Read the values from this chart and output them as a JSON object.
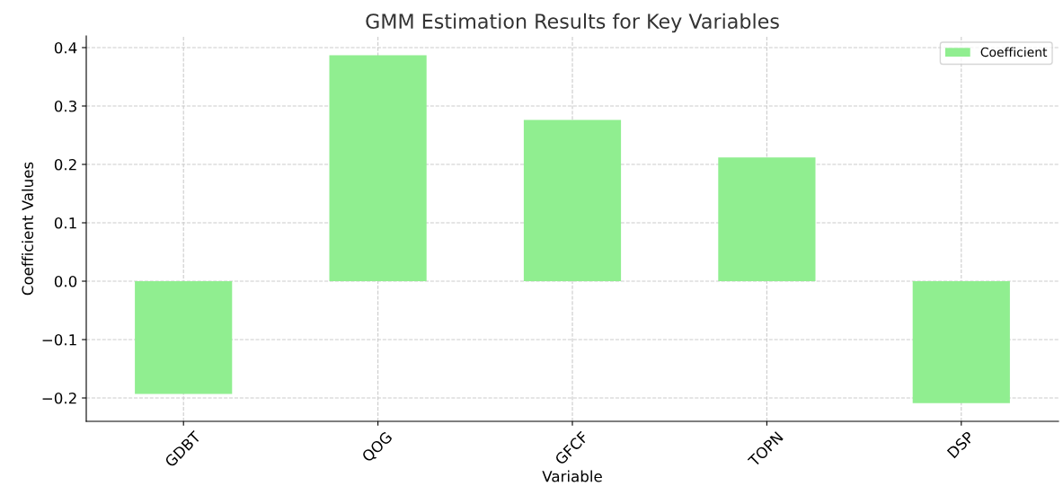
{
  "chart_data": {
    "type": "bar",
    "title": "GMM Estimation Results for Key Variables",
    "xlabel": "Variable",
    "ylabel": "Coefficient Values",
    "categories": [
      "GDBT",
      "QOG",
      "GFCF",
      "TOPN",
      "DSP"
    ],
    "series": [
      {
        "name": "Coefficient",
        "color": "#90ee90",
        "values": [
          -0.193,
          0.387,
          0.276,
          0.212,
          -0.209
        ]
      }
    ],
    "ylim": [
      -0.24,
      0.42
    ],
    "yticks": [
      {
        "value": -0.2,
        "label": "−0.2"
      },
      {
        "value": -0.1,
        "label": "−0.1"
      },
      {
        "value": 0.0,
        "label": "0.0"
      },
      {
        "value": 0.1,
        "label": "0.1"
      },
      {
        "value": 0.2,
        "label": "0.2"
      },
      {
        "value": 0.3,
        "label": "0.3"
      },
      {
        "value": 0.4,
        "label": "0.4"
      }
    ],
    "grid": true,
    "legend": "top right"
  }
}
